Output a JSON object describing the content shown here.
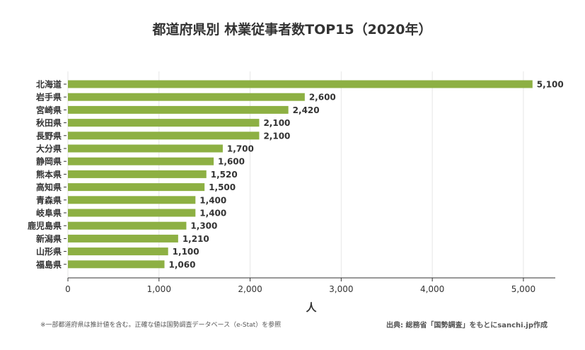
{
  "chart_data": {
    "type": "bar",
    "orientation": "horizontal",
    "title": "都道府県別 林業従事者数TOP15（2020年）",
    "xlabel": "人",
    "ylabel": "",
    "xlim": [
      0,
      5350
    ],
    "xticks": [
      0,
      1000,
      2000,
      3000,
      4000,
      5000
    ],
    "xtick_labels": [
      "0",
      "1,000",
      "2,000",
      "3,000",
      "4,000",
      "5,000"
    ],
    "grid": true,
    "bar_color": "#8db043",
    "categories": [
      "北海道",
      "岩手県",
      "宮崎県",
      "秋田県",
      "長野県",
      "大分県",
      "静岡県",
      "熊本県",
      "高知県",
      "青森県",
      "岐阜県",
      "鹿児島県",
      "新潟県",
      "山形県",
      "福島県"
    ],
    "values": [
      5100,
      2600,
      2420,
      2100,
      2100,
      1700,
      1600,
      1520,
      1500,
      1400,
      1400,
      1300,
      1210,
      1100,
      1060
    ],
    "data_labels": [
      "5,100",
      "2,600",
      "2,420",
      "2,100",
      "2,100",
      "1,700",
      "1,600",
      "1,520",
      "1,500",
      "1,400",
      "1,400",
      "1,300",
      "1,210",
      "1,100",
      "1,060"
    ]
  },
  "footer": {
    "note": "※一部都道府県は推計値を含む。正確な値は国勢調査データベース（e-Stat）を参照",
    "source": "出典: 総務省「国勢調査」をもとにsanchi.jp作成"
  }
}
